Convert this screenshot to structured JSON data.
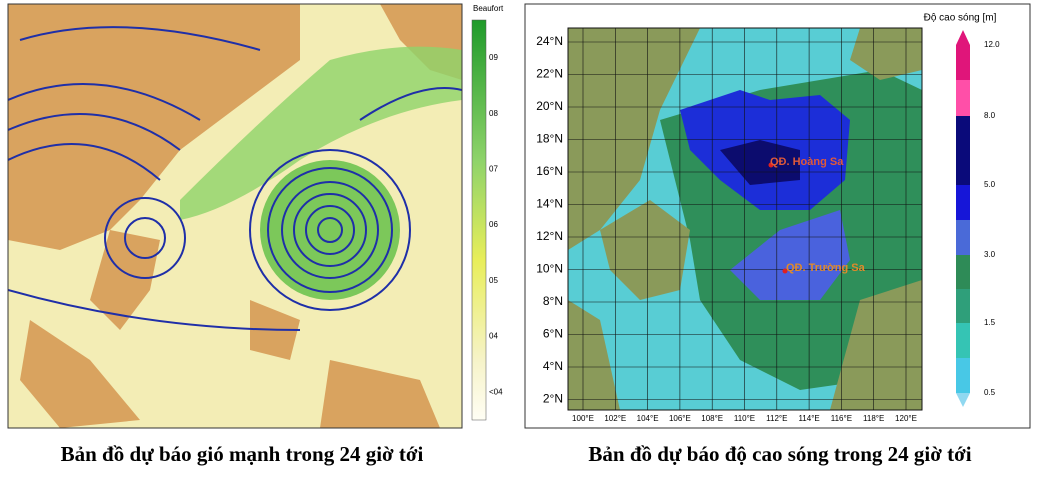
{
  "left_map": {
    "colorbar": {
      "title": "Beaufort",
      "labels": [
        "09",
        "08",
        "07",
        "06",
        "05",
        "04",
        "<04"
      ]
    },
    "caption": "Bản đồ dự báo gió mạnh trong 24 giờ tới"
  },
  "right_map": {
    "lat_ticks": [
      "24°N",
      "22°N",
      "20°N",
      "18°N",
      "16°N",
      "14°N",
      "12°N",
      "10°N",
      "8°N",
      "6°N",
      "4°N",
      "2°N"
    ],
    "lon_ticks": [
      "100°E",
      "102°E",
      "104°E",
      "106°E",
      "108°E",
      "110°E",
      "112°E",
      "114°E",
      "116°E",
      "118°E",
      "120°E"
    ],
    "places": [
      "QĐ. Hoàng Sa",
      "QĐ. Trường Sa"
    ],
    "colorbar": {
      "title": "Độ cao sóng [m]",
      "labels": [
        "12.0",
        "8.0",
        "5.0",
        "3.0",
        "1.5",
        "0.5"
      ]
    },
    "caption": "Bản đồ dự báo độ cao sóng trong 24 giờ tới"
  }
}
